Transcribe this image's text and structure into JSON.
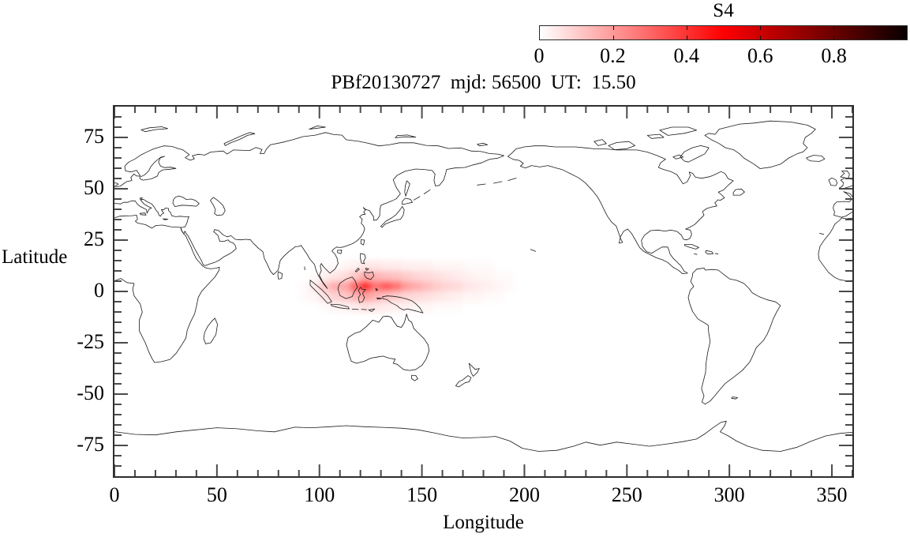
{
  "title": "PBf20130727  mjd: 56500  UT:  15.50",
  "colorbar": {
    "label": "S4",
    "tick_labels": [
      "0",
      "0.2",
      "0.4",
      "0.6",
      "0.8"
    ],
    "tick_values": [
      0,
      0.2,
      0.4,
      0.6,
      0.8
    ],
    "range": [
      0,
      1
    ],
    "colormap": "white-red-black"
  },
  "axes": {
    "x_label": "Longitude",
    "y_label": "Latitude",
    "x_range": [
      0,
      360
    ],
    "y_range": [
      -90,
      90
    ],
    "x_major_step": 50,
    "x_minor_step": 10,
    "y_major_step": 25,
    "y_minor_step": 5,
    "x_tick_labels": [
      "0",
      "50",
      "100",
      "150",
      "200",
      "250",
      "300",
      "350"
    ],
    "x_tick_values": [
      0,
      50,
      100,
      150,
      200,
      250,
      300,
      350
    ],
    "y_tick_labels": [
      "75",
      "50",
      "25",
      "0",
      "-25",
      "-50",
      "-75"
    ],
    "y_tick_values": [
      75,
      50,
      25,
      0,
      -25,
      -50,
      -75
    ]
  },
  "chart_data": {
    "type": "heatmap",
    "title": "PBf20130727  mjd: 56500  UT:  15.50",
    "xlabel": "Longitude",
    "ylabel": "Latitude",
    "xlim": [
      0,
      360
    ],
    "ylim": [
      -90,
      90
    ],
    "grid_on": false,
    "legend_position": "top-right-colorbar",
    "colorbar_label": "S4",
    "colorbar_range": [
      0,
      1
    ],
    "colormap": "white-red-black",
    "basemap": "world-coastlines-0-360",
    "s4_grid": {
      "lon_start": 90,
      "lon_step": 5,
      "lat_start": 15,
      "lat_step": -5,
      "note": "rows top-to-bottom: lat 15..10, 10..5, 5..0, 0..-5, -5..-10; cols lon 90..195; S4 values estimated from colormap",
      "values": [
        [
          0,
          0,
          0.01,
          0.01,
          0.02,
          0.03,
          0.05,
          0.05,
          0.04,
          0.04,
          0.03,
          0.03,
          0.03,
          0.02,
          0.02,
          0.02,
          0.01,
          0.01,
          0.01,
          0,
          0
        ],
        [
          0,
          0.01,
          0.03,
          0.05,
          0.07,
          0.11,
          0.17,
          0.15,
          0.13,
          0.12,
          0.1,
          0.08,
          0.07,
          0.06,
          0.05,
          0.04,
          0.03,
          0.02,
          0.02,
          0.01,
          0.01
        ],
        [
          0.01,
          0.04,
          0.11,
          0.16,
          0.17,
          0.3,
          0.42,
          0.27,
          0.32,
          0.27,
          0.19,
          0.16,
          0.13,
          0.1,
          0.08,
          0.07,
          0.05,
          0.04,
          0.03,
          0.02,
          0.01
        ],
        [
          0.01,
          0.02,
          0.06,
          0.09,
          0.11,
          0.15,
          0.18,
          0.15,
          0.12,
          0.1,
          0.08,
          0.07,
          0.06,
          0.05,
          0.04,
          0.03,
          0.02,
          0.02,
          0.01,
          0.01,
          0
        ],
        [
          0,
          0,
          0.01,
          0.02,
          0.03,
          0.04,
          0.06,
          0.05,
          0.04,
          0.03,
          0.03,
          0.02,
          0.02,
          0.01,
          0.01,
          0.01,
          0,
          0,
          0,
          0,
          0
        ]
      ]
    }
  }
}
